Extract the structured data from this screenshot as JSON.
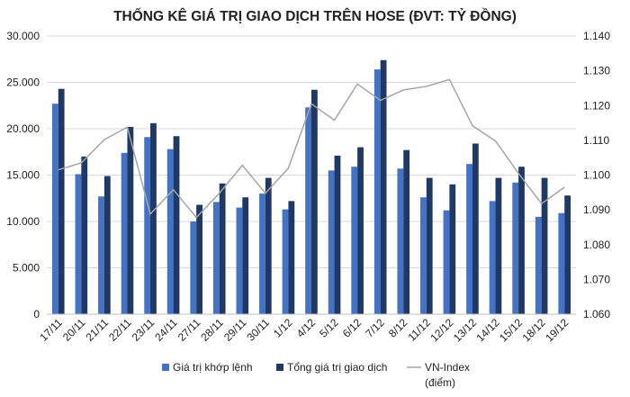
{
  "chart_data": {
    "type": "bar",
    "title": "THỐNG KÊ GIÁ TRỊ GIAO DỊCH TRÊN HOSE (ĐVT: TỶ ĐỒNG)",
    "categories": [
      "17/11",
      "20/11",
      "21/11",
      "22/11",
      "23/11",
      "24/11",
      "27/11",
      "28/11",
      "29/11",
      "30/11",
      "1/12",
      "4/12",
      "5/12",
      "6/12",
      "7/12",
      "8/12",
      "11/12",
      "12/12",
      "13/12",
      "14/12",
      "15/12",
      "18/12",
      "19/12"
    ],
    "ylim": [
      0,
      30000
    ],
    "y2lim": [
      1060,
      1140
    ],
    "yticks": [
      "0",
      "5.000",
      "10.000",
      "15.000",
      "20.000",
      "25.000",
      "30.000"
    ],
    "y2ticks": [
      "1.060",
      "1.070",
      "1.080",
      "1.090",
      "1.100",
      "1.110",
      "1.120",
      "1.130",
      "1.140"
    ],
    "grid": true,
    "legend_position": "bottom",
    "series": [
      {
        "name": "Giá trị khớp lệnh",
        "type": "bar",
        "axis": "left",
        "color": "#4472C4",
        "values": [
          22700,
          15100,
          12700,
          17400,
          19100,
          17800,
          10000,
          12100,
          11500,
          13000,
          11300,
          22300,
          15500,
          15900,
          26400,
          15700,
          12600,
          11200,
          16200,
          12200,
          14200,
          10500,
          10900
        ]
      },
      {
        "name": "Tổng giá trị giao dịch",
        "type": "bar",
        "axis": "left",
        "color": "#203864",
        "values": [
          24300,
          17000,
          14900,
          20200,
          20600,
          19200,
          11800,
          14100,
          12600,
          14700,
          12200,
          24200,
          17100,
          18000,
          27400,
          17700,
          14700,
          14000,
          18400,
          14700,
          15900,
          14700,
          12800
        ]
      },
      {
        "name": "VN-Index\n(điểm)",
        "type": "line",
        "axis": "right",
        "color": "#A6A6A6",
        "values": [
          1101.5,
          1103.5,
          1110.2,
          1113.8,
          1088.8,
          1095.8,
          1087.8,
          1094.8,
          1102.8,
          1094.8,
          1102.0,
          1120.5,
          1115.8,
          1126.2,
          1121.5,
          1124.5,
          1125.5,
          1127.5,
          1114.2,
          1109.8,
          1100.5,
          1091.8,
          1096.5
        ]
      }
    ]
  }
}
